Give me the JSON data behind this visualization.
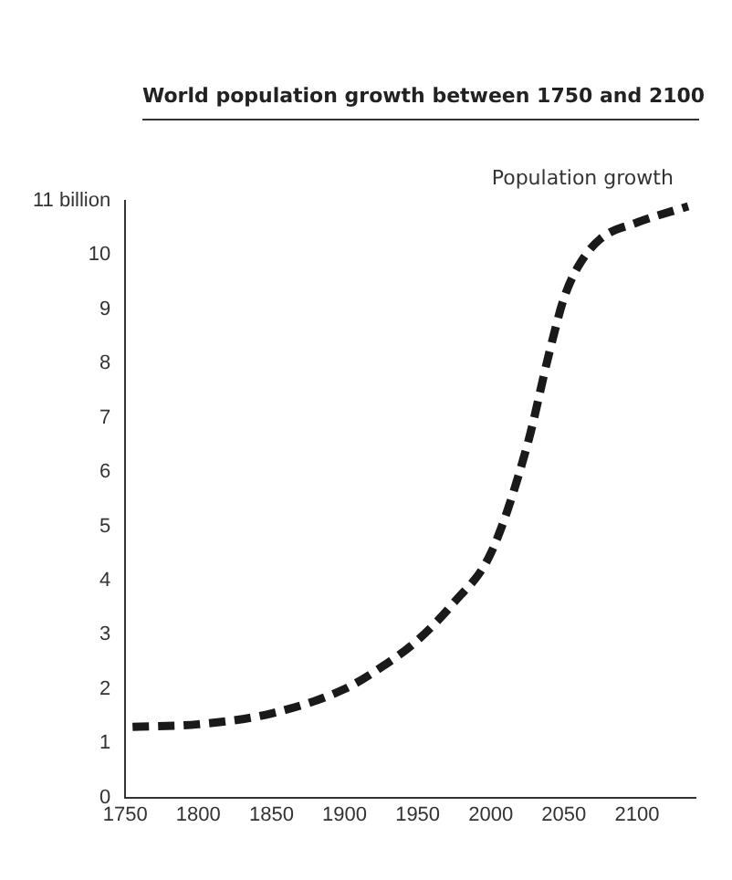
{
  "chart_data": {
    "type": "line",
    "title": "World population growth between 1750 and 2100",
    "x": [
      1755,
      1800,
      1850,
      1900,
      1925,
      1950,
      1975,
      2000,
      2025,
      2040,
      2050,
      2060,
      2075,
      2100,
      2135
    ],
    "series": [
      {
        "color": "#1a1a1a",
        "values": [
          1.3,
          1.35,
          1.55,
          2.0,
          2.4,
          2.9,
          3.6,
          4.5,
          6.5,
          8.2,
          9.2,
          9.8,
          10.3,
          10.6,
          10.9
        ]
      }
    ],
    "xlim": [
      1750,
      2140
    ],
    "xticks": [
      1750,
      1800,
      1850,
      1900,
      1950,
      2000,
      2050,
      2100
    ],
    "ylim": [
      0,
      11
    ],
    "yticks": [
      0,
      1,
      2,
      3,
      4,
      5,
      6,
      7,
      8,
      9,
      10,
      {
        "value": 11,
        "label": "11 billion"
      }
    ],
    "annotations": [
      {
        "text": "Population growth",
        "x": 2075,
        "y": 10.3
      }
    ],
    "grid": false,
    "legend": false,
    "marker": "none",
    "line_style": "dashed"
  }
}
